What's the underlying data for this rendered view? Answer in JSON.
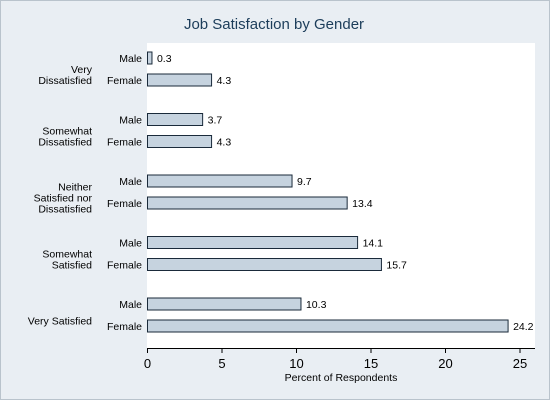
{
  "chart_data": {
    "type": "bar",
    "orientation": "horizontal",
    "title": "Job Satisfaction by Gender",
    "xlabel": "Percent of Respondents",
    "ylabel": "",
    "xlim": [
      0,
      26
    ],
    "xticks": [
      0,
      5,
      10,
      15,
      20,
      25
    ],
    "grid": false,
    "legend": "none",
    "bar_fill": "#c6d3df",
    "bar_stroke": "#1a2a3a",
    "groups": [
      {
        "label_lines": [
          "Very",
          "Dissatisfied"
        ],
        "bars": [
          {
            "name": "Male",
            "value": 0.3,
            "label": "0.3"
          },
          {
            "name": "Female",
            "value": 4.3,
            "label": "4.3"
          }
        ]
      },
      {
        "label_lines": [
          "Somewhat",
          "Dissatisfied"
        ],
        "bars": [
          {
            "name": "Male",
            "value": 3.7,
            "label": "3.7"
          },
          {
            "name": "Female",
            "value": 4.3,
            "label": "4.3"
          }
        ]
      },
      {
        "label_lines": [
          "Neither",
          "Satisfied nor",
          "Dissatisfied"
        ],
        "bars": [
          {
            "name": "Male",
            "value": 9.7,
            "label": "9.7"
          },
          {
            "name": "Female",
            "value": 13.4,
            "label": "13.4"
          }
        ]
      },
      {
        "label_lines": [
          "Somewhat",
          "Satisfied"
        ],
        "bars": [
          {
            "name": "Male",
            "value": 14.1,
            "label": "14.1"
          },
          {
            "name": "Female",
            "value": 15.7,
            "label": "15.7"
          }
        ]
      },
      {
        "label_lines": [
          "Very Satisfied"
        ],
        "bars": [
          {
            "name": "Male",
            "value": 10.3,
            "label": "10.3"
          },
          {
            "name": "Female",
            "value": 24.2,
            "label": "24.2"
          }
        ]
      }
    ]
  }
}
